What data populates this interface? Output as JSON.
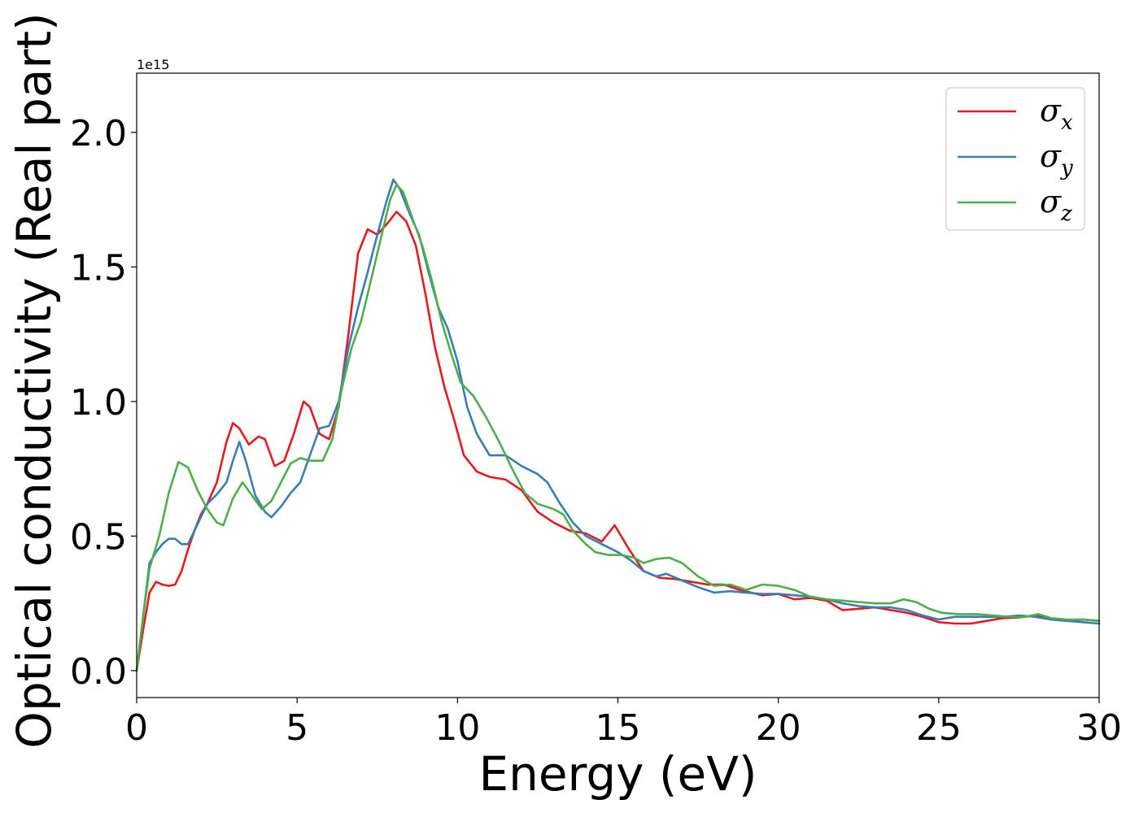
{
  "chart_data": {
    "type": "line",
    "title": "",
    "xlabel": "Energy (eV)",
    "ylabel": "Optical conductivity (Real part)",
    "y_offset_label": "1e15",
    "xlim": [
      0,
      30
    ],
    "ylim": [
      -0.1,
      2.22
    ],
    "x_ticks": [
      0,
      5,
      10,
      15,
      20,
      25,
      30
    ],
    "x_tick_labels": [
      "0",
      "5",
      "10",
      "15",
      "20",
      "25",
      "30"
    ],
    "y_ticks": [
      0.0,
      0.5,
      1.0,
      1.5,
      2.0
    ],
    "y_tick_labels": [
      "0.0",
      "0.5",
      "1.0",
      "1.5",
      "2.0"
    ],
    "grid": false,
    "legend_position": "top-right",
    "series": [
      {
        "name": "σx",
        "symbol": "σ",
        "subscript": "x",
        "color": "#e41a1c",
        "points": [
          [
            0,
            0
          ],
          [
            0.2,
            0.15
          ],
          [
            0.4,
            0.29
          ],
          [
            0.6,
            0.33
          ],
          [
            0.8,
            0.32
          ],
          [
            1.0,
            0.315
          ],
          [
            1.2,
            0.32
          ],
          [
            1.4,
            0.37
          ],
          [
            1.6,
            0.45
          ],
          [
            1.8,
            0.52
          ],
          [
            2.0,
            0.58
          ],
          [
            2.2,
            0.62
          ],
          [
            2.5,
            0.7
          ],
          [
            2.8,
            0.85
          ],
          [
            3.0,
            0.92
          ],
          [
            3.2,
            0.9
          ],
          [
            3.5,
            0.84
          ],
          [
            3.8,
            0.87
          ],
          [
            4.0,
            0.86
          ],
          [
            4.3,
            0.76
          ],
          [
            4.6,
            0.78
          ],
          [
            4.9,
            0.88
          ],
          [
            5.2,
            1.0
          ],
          [
            5.4,
            0.98
          ],
          [
            5.7,
            0.88
          ],
          [
            6.0,
            0.86
          ],
          [
            6.3,
            0.98
          ],
          [
            6.6,
            1.25
          ],
          [
            6.9,
            1.55
          ],
          [
            7.2,
            1.64
          ],
          [
            7.5,
            1.62
          ],
          [
            7.8,
            1.66
          ],
          [
            8.1,
            1.705
          ],
          [
            8.4,
            1.67
          ],
          [
            8.7,
            1.58
          ],
          [
            9.0,
            1.4
          ],
          [
            9.3,
            1.2
          ],
          [
            9.6,
            1.05
          ],
          [
            9.9,
            0.93
          ],
          [
            10.2,
            0.8
          ],
          [
            10.6,
            0.74
          ],
          [
            11.0,
            0.72
          ],
          [
            11.5,
            0.71
          ],
          [
            12.0,
            0.67
          ],
          [
            12.5,
            0.59
          ],
          [
            13.0,
            0.55
          ],
          [
            13.5,
            0.52
          ],
          [
            14.0,
            0.51
          ],
          [
            14.5,
            0.48
          ],
          [
            14.9,
            0.54
          ],
          [
            15.3,
            0.46
          ],
          [
            15.8,
            0.37
          ],
          [
            16.3,
            0.345
          ],
          [
            16.8,
            0.34
          ],
          [
            17.3,
            0.33
          ],
          [
            17.8,
            0.32
          ],
          [
            18.3,
            0.32
          ],
          [
            18.8,
            0.3
          ],
          [
            19.5,
            0.28
          ],
          [
            20.0,
            0.285
          ],
          [
            20.5,
            0.265
          ],
          [
            21.0,
            0.27
          ],
          [
            21.5,
            0.26
          ],
          [
            22.0,
            0.225
          ],
          [
            22.5,
            0.23
          ],
          [
            23.0,
            0.235
          ],
          [
            23.5,
            0.225
          ],
          [
            24.0,
            0.215
          ],
          [
            24.5,
            0.2
          ],
          [
            25.0,
            0.18
          ],
          [
            25.5,
            0.175
          ],
          [
            26.0,
            0.175
          ],
          [
            26.5,
            0.185
          ],
          [
            27.0,
            0.195
          ],
          [
            27.5,
            0.198
          ],
          [
            28.0,
            0.205
          ],
          [
            28.5,
            0.19
          ],
          [
            29.0,
            0.185
          ],
          [
            29.5,
            0.19
          ],
          [
            30,
            0.185
          ]
        ]
      },
      {
        "name": "σy",
        "symbol": "σ",
        "subscript": "y",
        "color": "#377eb8",
        "points": [
          [
            0,
            0
          ],
          [
            0.2,
            0.2
          ],
          [
            0.4,
            0.4
          ],
          [
            0.6,
            0.44
          ],
          [
            0.8,
            0.47
          ],
          [
            1.0,
            0.49
          ],
          [
            1.2,
            0.49
          ],
          [
            1.4,
            0.47
          ],
          [
            1.6,
            0.47
          ],
          [
            1.8,
            0.52
          ],
          [
            2.0,
            0.57
          ],
          [
            2.2,
            0.62
          ],
          [
            2.5,
            0.655
          ],
          [
            2.8,
            0.7
          ],
          [
            3.0,
            0.78
          ],
          [
            3.2,
            0.85
          ],
          [
            3.4,
            0.78
          ],
          [
            3.7,
            0.65
          ],
          [
            4.0,
            0.59
          ],
          [
            4.2,
            0.57
          ],
          [
            4.5,
            0.61
          ],
          [
            4.8,
            0.66
          ],
          [
            5.1,
            0.7
          ],
          [
            5.4,
            0.8
          ],
          [
            5.7,
            0.9
          ],
          [
            6.0,
            0.91
          ],
          [
            6.3,
            1.0
          ],
          [
            6.6,
            1.2
          ],
          [
            6.9,
            1.35
          ],
          [
            7.2,
            1.48
          ],
          [
            7.5,
            1.62
          ],
          [
            7.8,
            1.75
          ],
          [
            8.0,
            1.825
          ],
          [
            8.2,
            1.79
          ],
          [
            8.5,
            1.7
          ],
          [
            8.8,
            1.62
          ],
          [
            9.1,
            1.48
          ],
          [
            9.4,
            1.35
          ],
          [
            9.7,
            1.27
          ],
          [
            10.0,
            1.15
          ],
          [
            10.3,
            0.98
          ],
          [
            10.6,
            0.88
          ],
          [
            11.0,
            0.8
          ],
          [
            11.5,
            0.8
          ],
          [
            12.0,
            0.76
          ],
          [
            12.5,
            0.73
          ],
          [
            12.8,
            0.7
          ],
          [
            13.2,
            0.62
          ],
          [
            13.6,
            0.55
          ],
          [
            14.0,
            0.5
          ],
          [
            14.5,
            0.47
          ],
          [
            15.0,
            0.44
          ],
          [
            15.4,
            0.41
          ],
          [
            15.8,
            0.37
          ],
          [
            16.2,
            0.35
          ],
          [
            16.5,
            0.36
          ],
          [
            17.0,
            0.335
          ],
          [
            17.5,
            0.31
          ],
          [
            18.0,
            0.29
          ],
          [
            18.5,
            0.295
          ],
          [
            19.0,
            0.29
          ],
          [
            19.5,
            0.285
          ],
          [
            20.0,
            0.285
          ],
          [
            20.5,
            0.28
          ],
          [
            21.0,
            0.275
          ],
          [
            21.5,
            0.265
          ],
          [
            22.0,
            0.25
          ],
          [
            22.5,
            0.24
          ],
          [
            23.0,
            0.235
          ],
          [
            23.5,
            0.235
          ],
          [
            24.0,
            0.225
          ],
          [
            24.5,
            0.205
          ],
          [
            25.0,
            0.19
          ],
          [
            25.5,
            0.2
          ],
          [
            26.0,
            0.2
          ],
          [
            26.5,
            0.2
          ],
          [
            27.0,
            0.2
          ],
          [
            27.5,
            0.205
          ],
          [
            28.0,
            0.2
          ],
          [
            28.5,
            0.19
          ],
          [
            29.0,
            0.185
          ],
          [
            29.5,
            0.18
          ],
          [
            30,
            0.175
          ]
        ]
      },
      {
        "name": "σz",
        "symbol": "σ",
        "subscript": "z",
        "color": "#4daf4a",
        "points": [
          [
            0,
            0
          ],
          [
            0.2,
            0.2
          ],
          [
            0.4,
            0.38
          ],
          [
            0.7,
            0.5
          ],
          [
            1.0,
            0.66
          ],
          [
            1.3,
            0.775
          ],
          [
            1.6,
            0.755
          ],
          [
            1.9,
            0.67
          ],
          [
            2.2,
            0.6
          ],
          [
            2.5,
            0.55
          ],
          [
            2.7,
            0.54
          ],
          [
            3.0,
            0.64
          ],
          [
            3.3,
            0.7
          ],
          [
            3.6,
            0.65
          ],
          [
            3.9,
            0.6
          ],
          [
            4.2,
            0.63
          ],
          [
            4.5,
            0.7
          ],
          [
            4.8,
            0.77
          ],
          [
            5.1,
            0.79
          ],
          [
            5.4,
            0.78
          ],
          [
            5.8,
            0.78
          ],
          [
            6.1,
            0.86
          ],
          [
            6.4,
            1.05
          ],
          [
            6.7,
            1.2
          ],
          [
            7.0,
            1.3
          ],
          [
            7.3,
            1.45
          ],
          [
            7.6,
            1.6
          ],
          [
            7.9,
            1.75
          ],
          [
            8.1,
            1.805
          ],
          [
            8.3,
            1.78
          ],
          [
            8.6,
            1.68
          ],
          [
            8.9,
            1.58
          ],
          [
            9.2,
            1.45
          ],
          [
            9.5,
            1.3
          ],
          [
            9.8,
            1.18
          ],
          [
            10.1,
            1.07
          ],
          [
            10.5,
            1.02
          ],
          [
            10.9,
            0.94
          ],
          [
            11.3,
            0.85
          ],
          [
            11.7,
            0.75
          ],
          [
            12.1,
            0.66
          ],
          [
            12.5,
            0.62
          ],
          [
            13.0,
            0.6
          ],
          [
            13.3,
            0.58
          ],
          [
            13.6,
            0.52
          ],
          [
            14.0,
            0.47
          ],
          [
            14.3,
            0.44
          ],
          [
            14.7,
            0.43
          ],
          [
            15.1,
            0.43
          ],
          [
            15.5,
            0.42
          ],
          [
            15.8,
            0.4
          ],
          [
            16.2,
            0.415
          ],
          [
            16.6,
            0.42
          ],
          [
            17.0,
            0.4
          ],
          [
            17.5,
            0.35
          ],
          [
            18.0,
            0.315
          ],
          [
            18.5,
            0.32
          ],
          [
            19.0,
            0.3
          ],
          [
            19.5,
            0.32
          ],
          [
            20.0,
            0.315
          ],
          [
            20.5,
            0.3
          ],
          [
            21.0,
            0.275
          ],
          [
            21.5,
            0.265
          ],
          [
            22.0,
            0.26
          ],
          [
            22.5,
            0.255
          ],
          [
            23.0,
            0.25
          ],
          [
            23.5,
            0.25
          ],
          [
            23.9,
            0.265
          ],
          [
            24.3,
            0.255
          ],
          [
            24.7,
            0.23
          ],
          [
            25.1,
            0.215
          ],
          [
            25.6,
            0.21
          ],
          [
            26.2,
            0.21
          ],
          [
            26.7,
            0.205
          ],
          [
            27.2,
            0.2
          ],
          [
            27.7,
            0.2
          ],
          [
            28.1,
            0.21
          ],
          [
            28.5,
            0.195
          ],
          [
            29.0,
            0.19
          ],
          [
            29.5,
            0.19
          ],
          [
            30,
            0.185
          ]
        ]
      }
    ]
  }
}
